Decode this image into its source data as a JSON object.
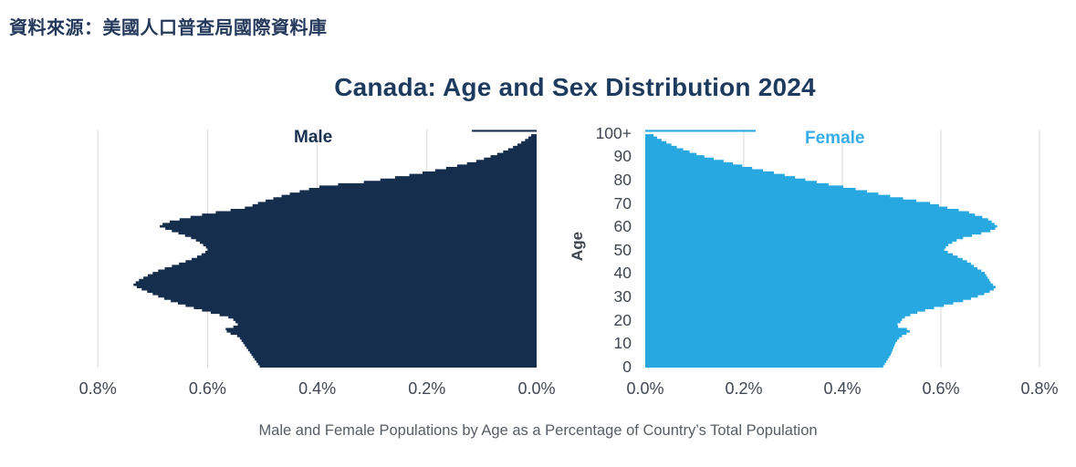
{
  "source_note": "資料來源：美國人口普查局國際資料庫",
  "title": "Canada: Age and Sex Distribution 2024",
  "caption": "Male and Female Populations by Age as a Percentage of Country’s Total Population",
  "legend": {
    "male": "Male",
    "female": "Female"
  },
  "colors": {
    "male_fill": "#152e4d",
    "female_fill": "#28a8e1",
    "male_label": "#16304f",
    "female_label": "#35adea",
    "title": "#1d3b5e",
    "source_note": "#24395c",
    "axis_text": "#3f4752",
    "caption_text": "#565d66",
    "gridline": "#d9d9d9"
  },
  "y_axis": {
    "title": "Age",
    "tick_labels": [
      "100+",
      "90",
      "80",
      "70",
      "60",
      "50",
      "40",
      "30",
      "20",
      "10",
      "0"
    ],
    "tick_ages": [
      100,
      90,
      80,
      70,
      60,
      50,
      40,
      30,
      20,
      10,
      0
    ]
  },
  "x_axis": {
    "male_tick_labels": [
      "0.8%",
      "0.6%",
      "0.4%",
      "0.2%",
      "0.0%"
    ],
    "female_tick_labels": [
      "0.0%",
      "0.2%",
      "0.4%",
      "0.6%",
      "0.8%"
    ],
    "tick_values": [
      0,
      0.2,
      0.4,
      0.6,
      0.8
    ]
  },
  "chart_data": {
    "type": "bar",
    "subtype": "population-pyramid",
    "title": "Canada: Age and Sex Distribution 2024",
    "xlabel": "% of Country’s Total Population",
    "ylabel": "Age",
    "age_resolution": "single-year ages 0 to 100 (index 100 = aggregated 100+ group)",
    "x_axis": {
      "min": 0,
      "max": 0.84,
      "ticks": [
        0,
        0.2,
        0.4,
        0.6,
        0.8
      ],
      "tick_format": "percent",
      "grid": true
    },
    "y_axis": {
      "min": 0,
      "max": "100+",
      "ticks": [
        0,
        10,
        20,
        30,
        40,
        50,
        60,
        70,
        80,
        90,
        100
      ]
    },
    "legend_position": "inside-top",
    "units": "percent of total population",
    "series": [
      {
        "name": "Male",
        "color": "#152e4d",
        "direction": "left",
        "values": [
          0.505,
          0.508,
          0.511,
          0.514,
          0.517,
          0.52,
          0.523,
          0.526,
          0.529,
          0.532,
          0.535,
          0.538,
          0.541,
          0.546,
          0.558,
          0.565,
          0.567,
          0.553,
          0.545,
          0.549,
          0.553,
          0.562,
          0.578,
          0.594,
          0.61,
          0.625,
          0.64,
          0.654,
          0.667,
          0.679,
          0.69,
          0.7,
          0.71,
          0.72,
          0.729,
          0.735,
          0.731,
          0.725,
          0.717,
          0.709,
          0.7,
          0.69,
          0.678,
          0.665,
          0.652,
          0.64,
          0.629,
          0.619,
          0.611,
          0.604,
          0.6,
          0.603,
          0.608,
          0.614,
          0.621,
          0.63,
          0.641,
          0.653,
          0.665,
          0.677,
          0.687,
          0.682,
          0.669,
          0.651,
          0.631,
          0.61,
          0.585,
          0.558,
          0.532,
          0.518,
          0.508,
          0.494,
          0.48,
          0.465,
          0.45,
          0.432,
          0.415,
          0.396,
          0.362,
          0.315,
          0.285,
          0.258,
          0.232,
          0.208,
          0.185,
          0.165,
          0.145,
          0.127,
          0.11,
          0.096,
          0.084,
          0.072,
          0.061,
          0.052,
          0.043,
          0.035,
          0.028,
          0.021,
          0.015,
          0.01,
          0.118
        ]
      },
      {
        "name": "Female",
        "color": "#28a8e1",
        "direction": "right",
        "values": [
          0.483,
          0.486,
          0.489,
          0.492,
          0.495,
          0.498,
          0.5,
          0.502,
          0.504,
          0.506,
          0.508,
          0.511,
          0.515,
          0.521,
          0.53,
          0.537,
          0.531,
          0.513,
          0.512,
          0.518,
          0.521,
          0.527,
          0.538,
          0.552,
          0.568,
          0.586,
          0.606,
          0.625,
          0.645,
          0.661,
          0.675,
          0.688,
          0.699,
          0.707,
          0.711,
          0.706,
          0.701,
          0.698,
          0.695,
          0.692,
          0.689,
          0.682,
          0.674,
          0.667,
          0.661,
          0.653,
          0.644,
          0.634,
          0.624,
          0.614,
          0.607,
          0.61,
          0.615,
          0.623,
          0.632,
          0.645,
          0.663,
          0.682,
          0.7,
          0.71,
          0.714,
          0.709,
          0.703,
          0.696,
          0.684,
          0.669,
          0.657,
          0.636,
          0.613,
          0.596,
          0.578,
          0.55,
          0.523,
          0.497,
          0.473,
          0.45,
          0.427,
          0.402,
          0.372,
          0.348,
          0.325,
          0.304,
          0.283,
          0.261,
          0.239,
          0.217,
          0.197,
          0.178,
          0.159,
          0.139,
          0.12,
          0.104,
          0.09,
          0.077,
          0.064,
          0.053,
          0.043,
          0.033,
          0.024,
          0.017,
          0.224
        ]
      }
    ]
  }
}
